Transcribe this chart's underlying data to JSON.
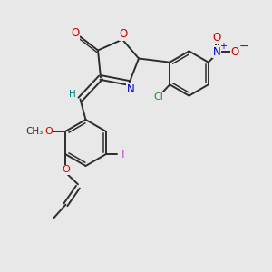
{
  "background_color": "#e8e8e8",
  "bond_color": "#2d2d2d",
  "atom_colors": {
    "O": "#cc0000",
    "N": "#0000cc",
    "Cl": "#228b22",
    "I": "#cc44cc",
    "H": "#008080",
    "C": "#2d2d2d"
  },
  "figsize": [
    3.0,
    3.0
  ],
  "dpi": 100
}
